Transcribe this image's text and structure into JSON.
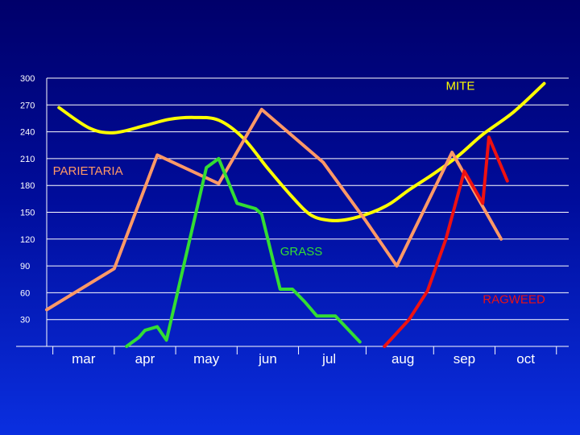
{
  "chart_data": {
    "type": "line",
    "title": "",
    "xlabel": "",
    "ylabel": "",
    "ylim": [
      0,
      300
    ],
    "xlim": [
      2.4,
      10.9
    ],
    "grid": true,
    "yticks": [
      "30",
      "60",
      "90",
      "120",
      "150",
      "180",
      "210",
      "240",
      "270",
      "300"
    ],
    "categories": [
      {
        "label": "mar",
        "x": 3.0
      },
      {
        "label": "apr",
        "x": 4.0
      },
      {
        "label": "may",
        "x": 5.0
      },
      {
        "label": "jun",
        "x": 6.0
      },
      {
        "label": "jul",
        "x": 7.0
      },
      {
        "label": "aug",
        "x": 8.2
      },
      {
        "label": "sep",
        "x": 9.2
      },
      {
        "label": "oct",
        "x": 10.2
      }
    ],
    "series": [
      {
        "name": "MITE",
        "color": "#ffff00",
        "smooth": true,
        "label_at": [
          8.9,
          287
        ],
        "points": [
          [
            2.6,
            267
          ],
          [
            3.1,
            244
          ],
          [
            3.5,
            239
          ],
          [
            4.0,
            247
          ],
          [
            4.4,
            254
          ],
          [
            4.8,
            256
          ],
          [
            5.2,
            253
          ],
          [
            5.6,
            233
          ],
          [
            6.0,
            199
          ],
          [
            6.4,
            167
          ],
          [
            6.7,
            147
          ],
          [
            7.0,
            141
          ],
          [
            7.3,
            142
          ],
          [
            7.7,
            150
          ],
          [
            8.0,
            160
          ],
          [
            8.3,
            175
          ],
          [
            8.7,
            193
          ],
          [
            9.1,
            213
          ],
          [
            9.5,
            237
          ],
          [
            10.0,
            262
          ],
          [
            10.5,
            294
          ]
        ]
      },
      {
        "name": "PARIETARIA",
        "color": "#ff9966",
        "smooth": false,
        "label_at": [
          2.5,
          192
        ],
        "points": [
          [
            2.4,
            41
          ],
          [
            3.5,
            87
          ],
          [
            4.2,
            214
          ],
          [
            5.2,
            182
          ],
          [
            5.9,
            265
          ],
          [
            6.9,
            206
          ],
          [
            7.6,
            140
          ],
          [
            8.1,
            90
          ],
          [
            9.0,
            217
          ],
          [
            9.8,
            120
          ]
        ]
      },
      {
        "name": "GRASS",
        "color": "#33dd33",
        "smooth": false,
        "label_at": [
          6.2,
          102
        ],
        "points": [
          [
            3.7,
            0
          ],
          [
            3.9,
            10
          ],
          [
            4.0,
            18
          ],
          [
            4.2,
            22
          ],
          [
            4.35,
            7
          ],
          [
            5.0,
            200
          ],
          [
            5.2,
            210
          ],
          [
            5.5,
            160
          ],
          [
            5.8,
            154
          ],
          [
            5.9,
            148
          ],
          [
            6.2,
            64
          ],
          [
            6.4,
            64
          ],
          [
            6.6,
            50
          ],
          [
            6.8,
            34
          ],
          [
            7.1,
            34
          ],
          [
            7.5,
            5
          ]
        ]
      },
      {
        "name": "RAGWEED",
        "color": "#ee1111",
        "smooth": false,
        "label_at": [
          9.5,
          48
        ],
        "points": [
          [
            7.9,
            0
          ],
          [
            8.3,
            30
          ],
          [
            8.6,
            62
          ],
          [
            8.9,
            120
          ],
          [
            9.2,
            196
          ],
          [
            9.5,
            160
          ],
          [
            9.6,
            234
          ],
          [
            9.9,
            185
          ]
        ]
      }
    ]
  }
}
